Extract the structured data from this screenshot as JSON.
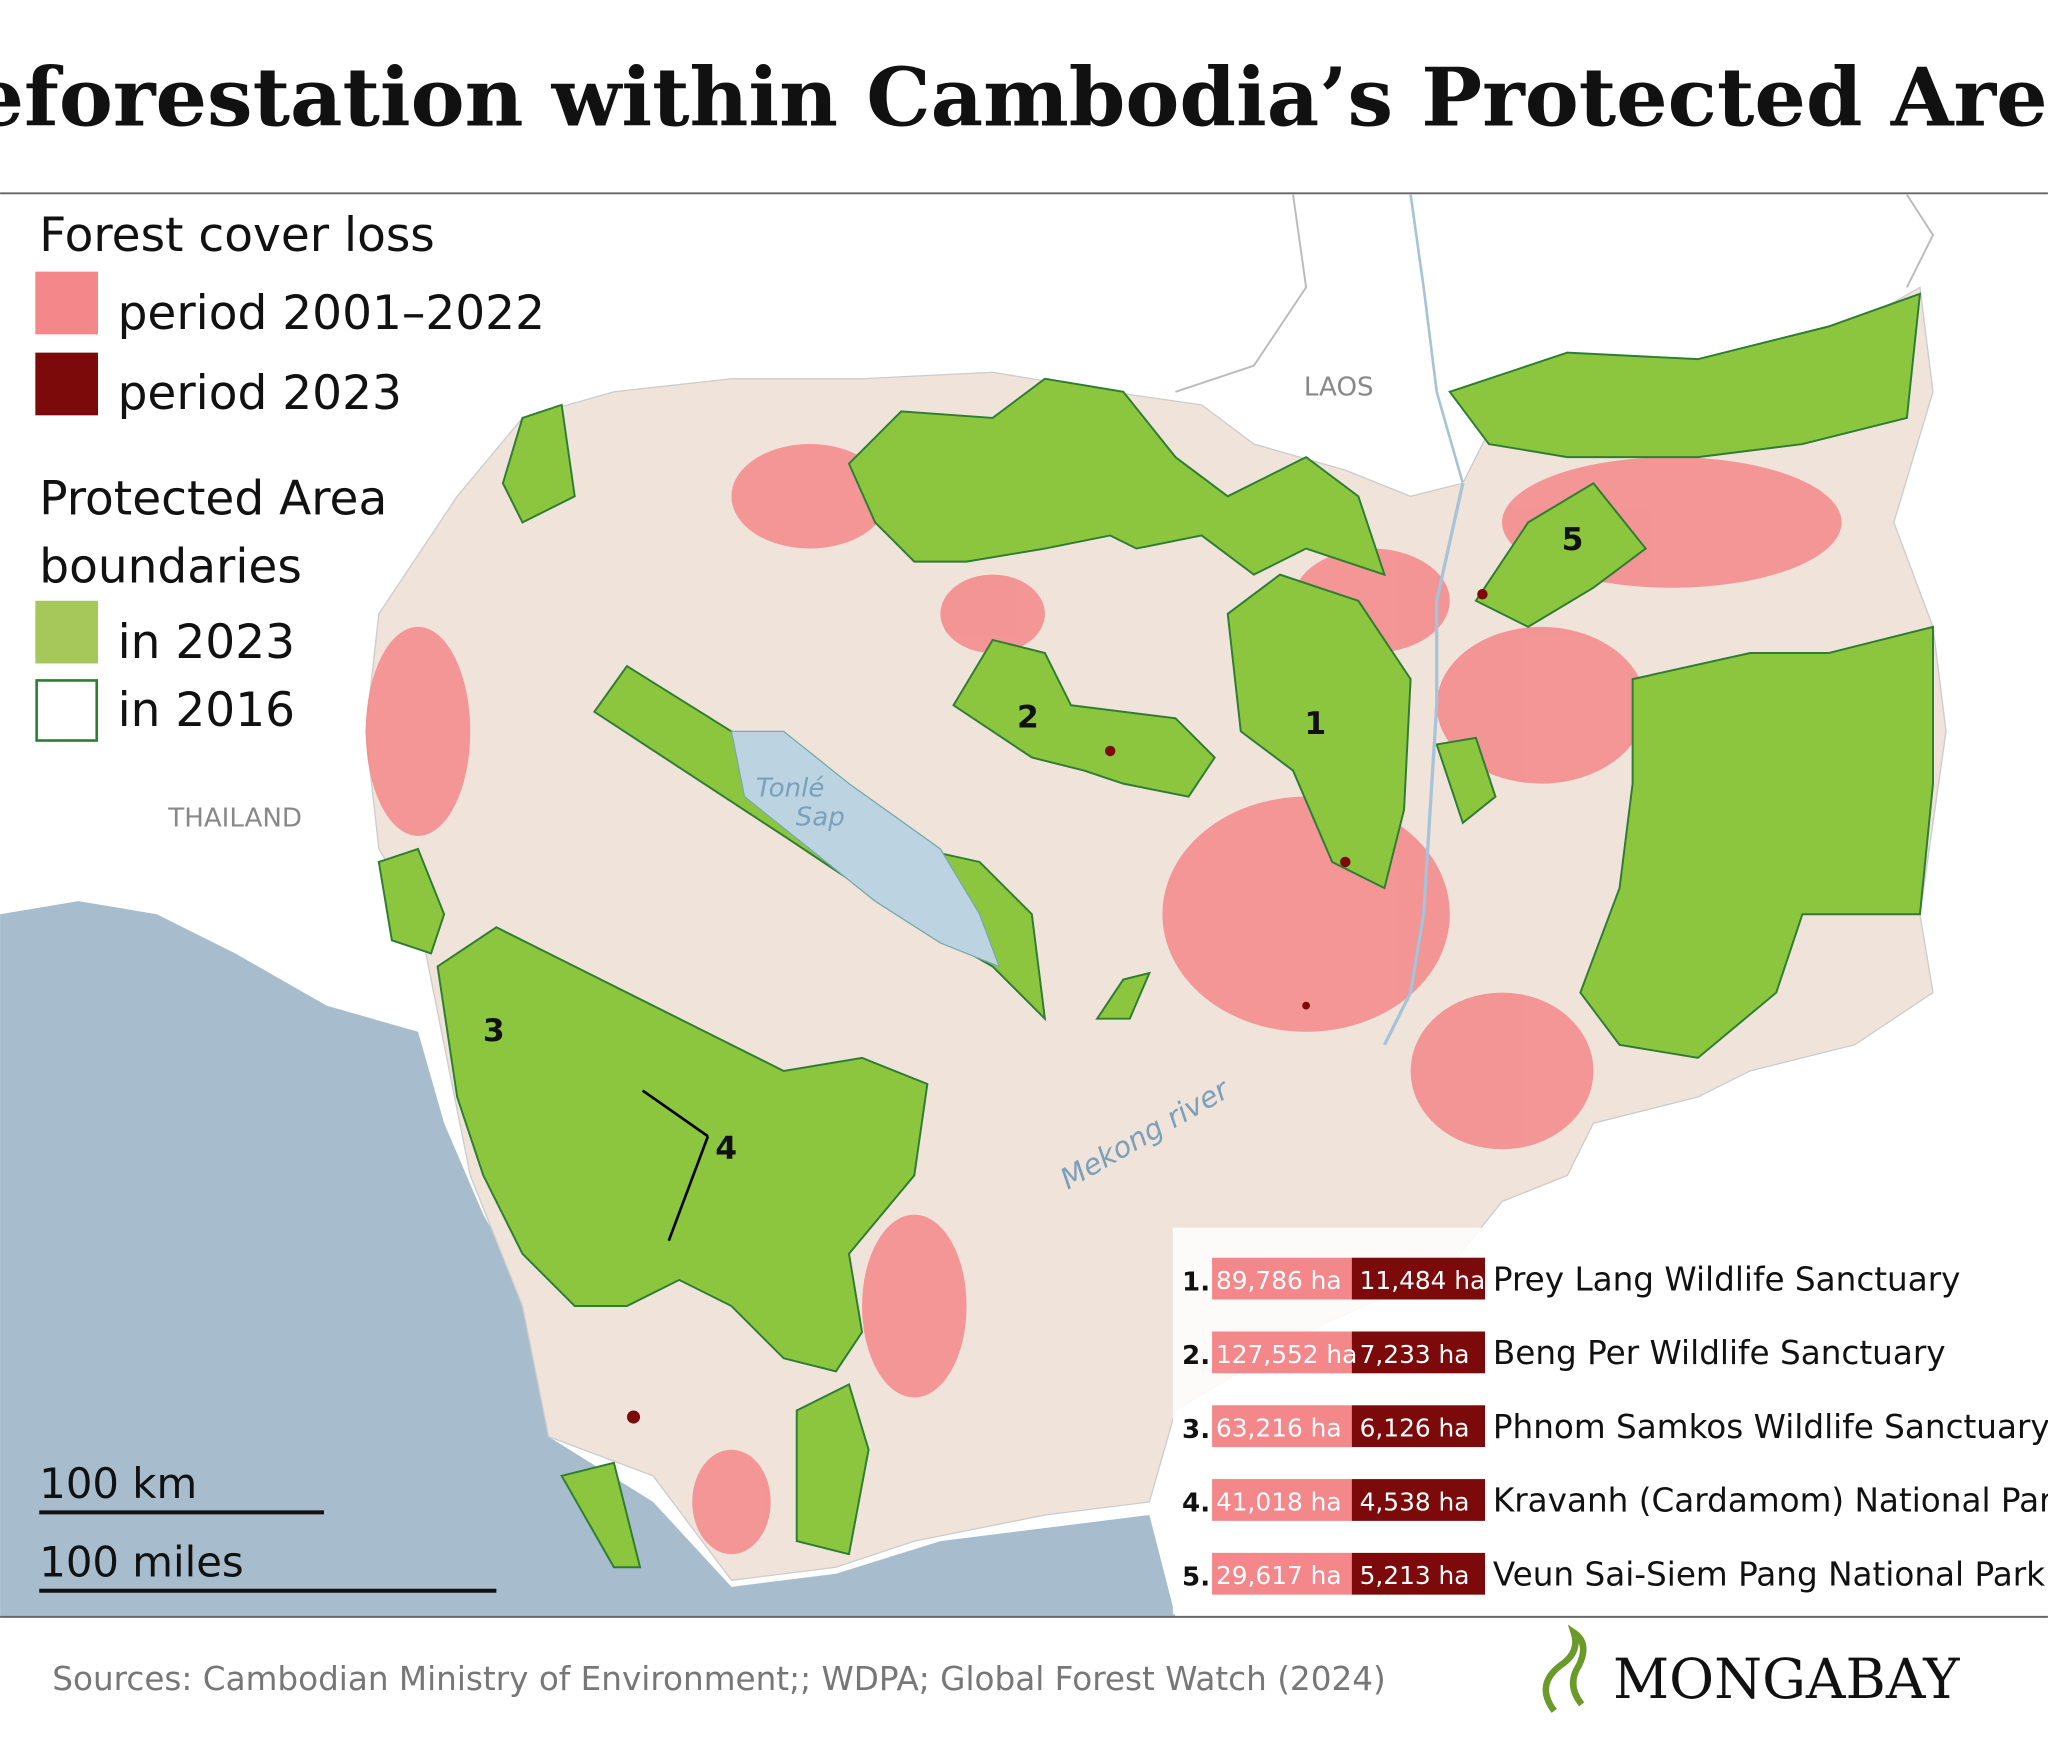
{
  "title": "Deforestation within Cambodia’s Protected Areas",
  "legend": {
    "loss_title": "Forest cover loss",
    "loss_items": [
      {
        "label": "period 2001–2022",
        "color": "#f4878a"
      },
      {
        "label": "period 2023",
        "color": "#7d0a0a"
      }
    ],
    "boundary_title": [
      "Protected Area",
      "boundaries"
    ],
    "boundary_items": [
      {
        "label": "in 2023",
        "color": "#a6c85a"
      },
      {
        "label": "in 2016",
        "color": "#2e7d32"
      }
    ]
  },
  "map_labels": {
    "laos": "LAOS",
    "thailand": "THAILAND",
    "lake": [
      "Tonlé",
      "Sap"
    ],
    "river": "Mekong river",
    "markers": [
      "1",
      "2",
      "3",
      "4",
      "5"
    ]
  },
  "scale": [
    "100 km",
    "100 miles"
  ],
  "table": {
    "rows": [
      [
        "1.",
        "89,786 ha",
        "11,484 ha",
        "Prey Lang Wildlife Sanctuary"
      ],
      [
        "2.",
        "127,552 ha",
        "7,233 ha",
        "Beng Per Wildlife Sanctuary"
      ],
      [
        "3.",
        "63,216 ha",
        "6,126 ha",
        "Phnom Samkos Wildlife Sanctuary"
      ],
      [
        "4.",
        "41,018 ha",
        "4,538 ha",
        "Kravanh (Cardamom) National Park"
      ],
      [
        "5.",
        "29,617 ha",
        "5,213 ha",
        "Veun Sai-Siem Pang National Park"
      ]
    ]
  },
  "sources": "Sources: Cambodian Ministry of Environment;; WDPA; Global Forest Watch (2024)",
  "brand": "MONGABAY"
}
